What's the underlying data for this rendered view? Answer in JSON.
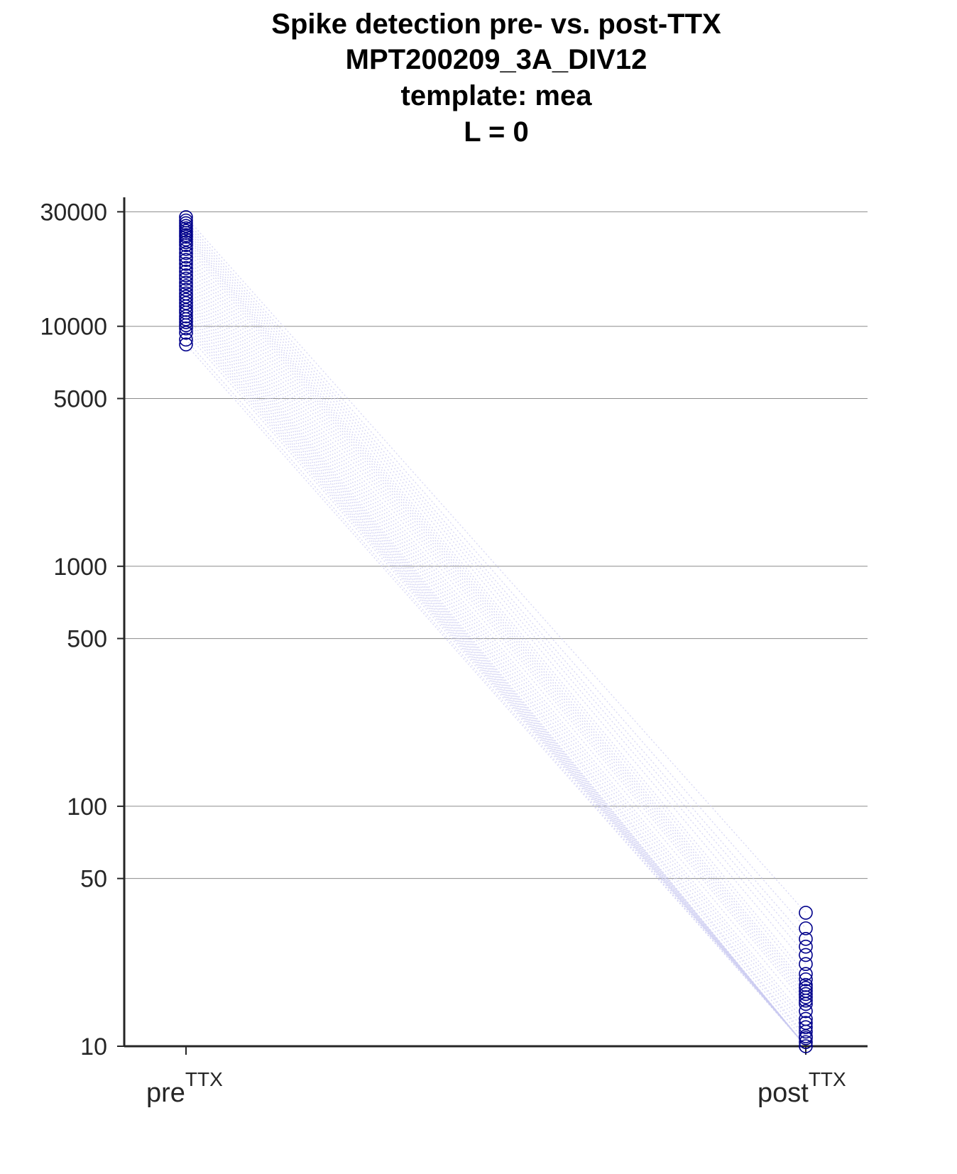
{
  "chart_data": {
    "type": "scatter",
    "title_lines": [
      "Spike detection pre- vs. post-TTX",
      "MPT200209_3A_DIV12",
      "template: mea",
      "L = 0"
    ],
    "xlabel": "",
    "ylabel": "",
    "y_scale": "log",
    "ylim": [
      10,
      34000
    ],
    "y_ticks": [
      10,
      50,
      100,
      500,
      1000,
      5000,
      10000,
      30000
    ],
    "y_tick_labels": [
      "10",
      "50",
      "100",
      "500",
      "1000",
      "5000",
      "10000",
      "30000"
    ],
    "grid": "horizontal",
    "categories": [
      {
        "label": "pre",
        "sup": "TTX"
      },
      {
        "label": "post",
        "sup": "TTX"
      }
    ],
    "marker": "open-circle",
    "colors": {
      "marker": "#00008b",
      "pair_line": "#c8c8f0",
      "grid": "#8c8c8c",
      "axis": "#262626"
    },
    "pre_values": [
      28500,
      27600,
      26900,
      26200,
      25600,
      25000,
      24500,
      24000,
      23600,
      23000,
      22400,
      21800,
      21000,
      20200,
      19500,
      18900,
      18200,
      17500,
      16900,
      16300,
      15800,
      15200,
      14700,
      14200,
      13700,
      13300,
      12900,
      12500,
      12100,
      11700,
      11400,
      11000,
      10700,
      10400,
      10100,
      9800,
      9400,
      8800,
      8400
    ],
    "post_values": [
      36,
      31,
      28,
      26,
      24,
      22,
      20,
      19,
      18,
      17.5,
      17,
      16.5,
      16,
      15.5,
      15,
      14,
      13,
      12.5,
      12,
      11.5,
      11,
      10.8,
      10.4,
      10
    ],
    "pair_post_values": [
      36,
      31,
      28,
      26,
      24,
      22,
      20,
      19,
      18,
      17.5,
      17,
      16.5,
      16,
      15.5,
      15,
      14,
      13,
      12.5,
      12,
      11.5,
      11,
      10.8,
      10.4,
      10,
      10,
      10,
      10,
      10,
      10,
      10,
      10,
      10,
      10,
      10,
      10,
      10,
      10,
      10,
      10
    ]
  }
}
